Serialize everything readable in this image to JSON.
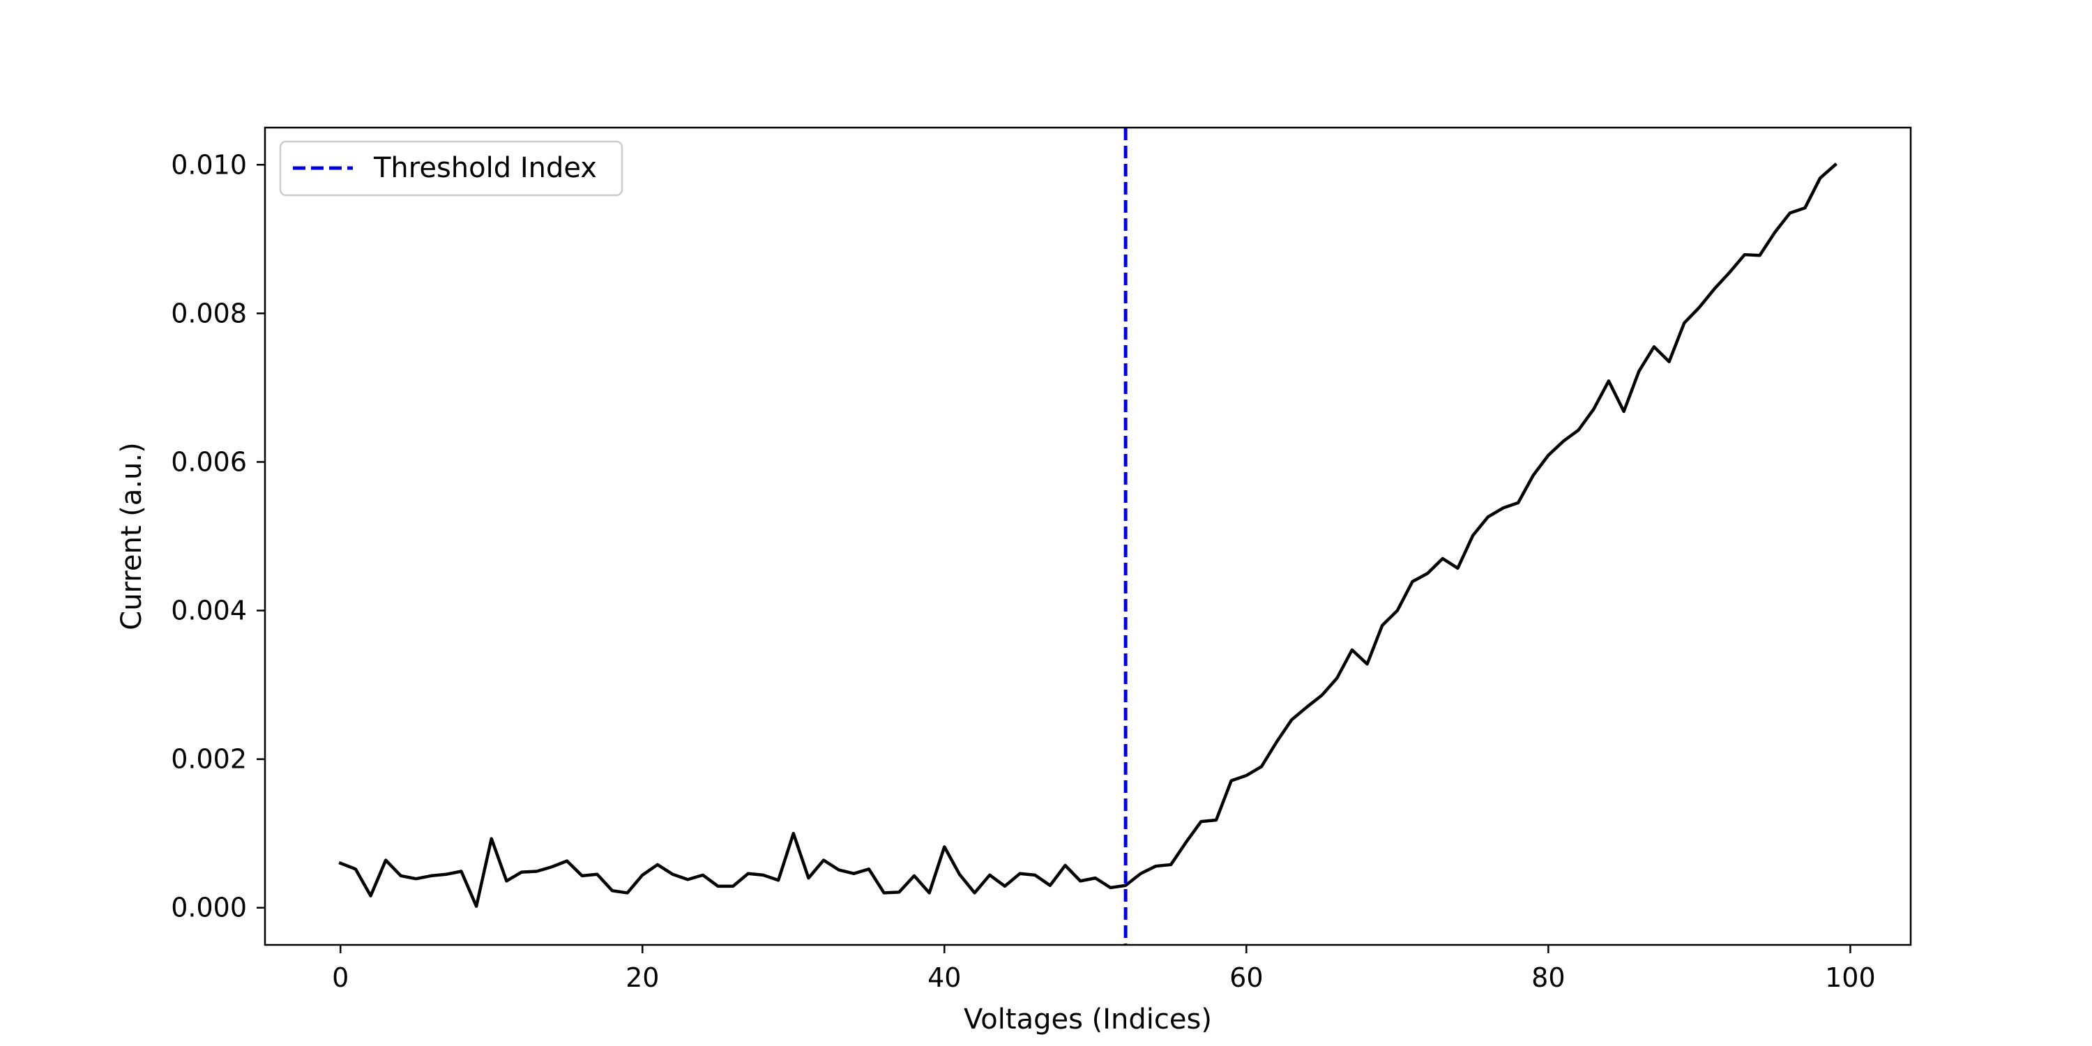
{
  "chart_data": {
    "type": "line",
    "xlabel": "Voltages (Indices)",
    "ylabel": "Current (a.u.)",
    "xlim": [
      -5,
      104
    ],
    "ylim": [
      -0.0005,
      0.0105
    ],
    "xticks": [
      0,
      20,
      40,
      60,
      80,
      100
    ],
    "yticks": [
      0.0,
      0.002,
      0.004,
      0.006,
      0.008,
      0.01
    ],
    "ytick_labels": [
      "0.000",
      "0.002",
      "0.004",
      "0.006",
      "0.008",
      "0.010"
    ],
    "grid": false,
    "legend": {
      "placement": "top-left",
      "entries": [
        "Threshold Index"
      ]
    },
    "series": [
      {
        "color": "#000000",
        "x": [
          0,
          1,
          2,
          3,
          4,
          5,
          6,
          7,
          8,
          9,
          10,
          11,
          12,
          13,
          14,
          15,
          16,
          17,
          18,
          19,
          20,
          21,
          22,
          23,
          24,
          25,
          26,
          27,
          28,
          29,
          30,
          31,
          32,
          33,
          34,
          35,
          36,
          37,
          38,
          39,
          40,
          41,
          42,
          43,
          44,
          45,
          46,
          47,
          48,
          49,
          50,
          51,
          52,
          53,
          54,
          55,
          56,
          57,
          58,
          59,
          60,
          61,
          62,
          63,
          64,
          65,
          66,
          67,
          68,
          69,
          70,
          71,
          72,
          73,
          74,
          75,
          76,
          77,
          78,
          79,
          80,
          81,
          82,
          83,
          84,
          85,
          86,
          87,
          88,
          89,
          90,
          91,
          92,
          93,
          94,
          95,
          96,
          97,
          98,
          99
        ],
        "y": [
          0.0006,
          0.00052,
          0.00016,
          0.00064,
          0.00043,
          0.00039,
          0.00043,
          0.00045,
          0.00049,
          2e-05,
          0.00093,
          0.00036,
          0.00048,
          0.00049,
          0.00055,
          0.00063,
          0.00043,
          0.00045,
          0.00023,
          0.0002,
          0.00044,
          0.00058,
          0.00045,
          0.00038,
          0.00044,
          0.00029,
          0.00029,
          0.00046,
          0.00044,
          0.00037,
          0.001,
          0.0004,
          0.00064,
          0.00051,
          0.00046,
          0.00052,
          0.0002,
          0.00021,
          0.00043,
          0.0002,
          0.00082,
          0.00045,
          0.0002,
          0.00044,
          0.00029,
          0.00046,
          0.00044,
          0.0003,
          0.00057,
          0.00036,
          0.0004,
          0.00027,
          0.0003,
          0.00046,
          0.00056,
          0.00058,
          0.00088,
          0.00116,
          0.00118,
          0.00171,
          0.00178,
          0.0019,
          0.00223,
          0.00253,
          0.0027,
          0.00286,
          0.00309,
          0.00347,
          0.00328,
          0.0038,
          0.004,
          0.00439,
          0.0045,
          0.0047,
          0.00457,
          0.00501,
          0.00526,
          0.00538,
          0.00545,
          0.00582,
          0.00609,
          0.00628,
          0.00643,
          0.00671,
          0.00709,
          0.00668,
          0.00722,
          0.00755,
          0.00735,
          0.00787,
          0.00808,
          0.00833,
          0.00855,
          0.00879,
          0.00878,
          0.00909,
          0.00935,
          0.00942,
          0.00982,
          0.01
        ]
      }
    ],
    "vlines": [
      {
        "x": 52,
        "style": "dashed",
        "color": "#0000dd",
        "label": "Threshold Index"
      }
    ]
  }
}
